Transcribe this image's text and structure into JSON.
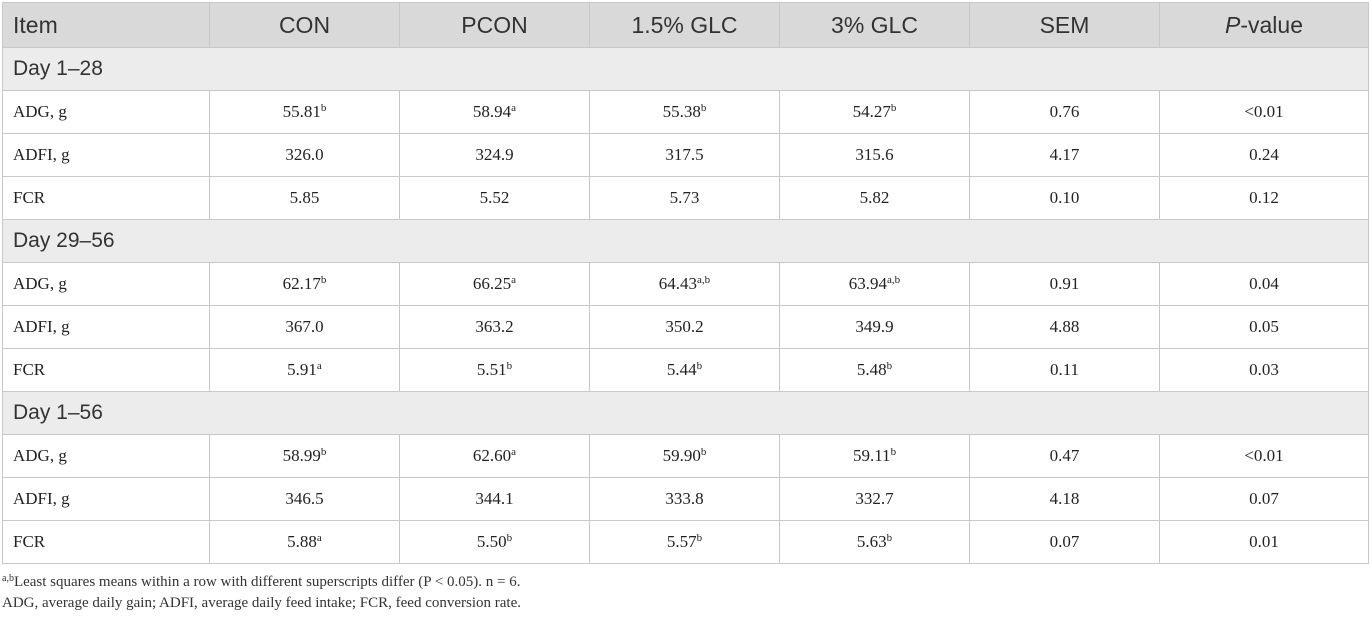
{
  "table": {
    "headers": {
      "item": "Item",
      "con": "CON",
      "pcon": "PCON",
      "glc15": "1.5% GLC",
      "glc3": "3% GLC",
      "sem": "SEM",
      "p_italic": "P",
      "p_rest": "-value"
    },
    "sections": [
      {
        "title": "Day 1–28",
        "rows": [
          {
            "label": "ADG, g",
            "cells": [
              {
                "v": "55.81",
                "s": "b"
              },
              {
                "v": "58.94",
                "s": "a"
              },
              {
                "v": "55.38",
                "s": "b"
              },
              {
                "v": "54.27",
                "s": "b"
              }
            ],
            "sem": "0.76",
            "p": "<0.01"
          },
          {
            "label": "ADFI, g",
            "cells": [
              {
                "v": "326.0",
                "s": ""
              },
              {
                "v": "324.9",
                "s": ""
              },
              {
                "v": "317.5",
                "s": ""
              },
              {
                "v": "315.6",
                "s": ""
              }
            ],
            "sem": "4.17",
            "p": "0.24"
          },
          {
            "label": "FCR",
            "cells": [
              {
                "v": "5.85",
                "s": ""
              },
              {
                "v": "5.52",
                "s": ""
              },
              {
                "v": "5.73",
                "s": ""
              },
              {
                "v": "5.82",
                "s": ""
              }
            ],
            "sem": "0.10",
            "p": "0.12"
          }
        ]
      },
      {
        "title": "Day 29–56",
        "rows": [
          {
            "label": "ADG, g",
            "cells": [
              {
                "v": "62.17",
                "s": "b"
              },
              {
                "v": "66.25",
                "s": "a"
              },
              {
                "v": "64.43",
                "s": "a,b"
              },
              {
                "v": "63.94",
                "s": "a,b"
              }
            ],
            "sem": "0.91",
            "p": "0.04"
          },
          {
            "label": "ADFI, g",
            "cells": [
              {
                "v": "367.0",
                "s": ""
              },
              {
                "v": "363.2",
                "s": ""
              },
              {
                "v": "350.2",
                "s": ""
              },
              {
                "v": "349.9",
                "s": ""
              }
            ],
            "sem": "4.88",
            "p": "0.05"
          },
          {
            "label": "FCR",
            "cells": [
              {
                "v": "5.91",
                "s": "a"
              },
              {
                "v": "5.51",
                "s": "b"
              },
              {
                "v": "5.44",
                "s": "b"
              },
              {
                "v": "5.48",
                "s": "b"
              }
            ],
            "sem": "0.11",
            "p": "0.03"
          }
        ]
      },
      {
        "title": "Day 1–56",
        "rows": [
          {
            "label": "ADG, g",
            "cells": [
              {
                "v": "58.99",
                "s": "b"
              },
              {
                "v": "62.60",
                "s": "a"
              },
              {
                "v": "59.90",
                "s": "b"
              },
              {
                "v": "59.11",
                "s": "b"
              }
            ],
            "sem": "0.47",
            "p": "<0.01"
          },
          {
            "label": "ADFI, g",
            "cells": [
              {
                "v": "346.5",
                "s": ""
              },
              {
                "v": "344.1",
                "s": ""
              },
              {
                "v": "333.8",
                "s": ""
              },
              {
                "v": "332.7",
                "s": ""
              }
            ],
            "sem": "4.18",
            "p": "0.07"
          },
          {
            "label": "FCR",
            "cells": [
              {
                "v": "5.88",
                "s": "a"
              },
              {
                "v": "5.50",
                "s": "b"
              },
              {
                "v": "5.57",
                "s": "b"
              },
              {
                "v": "5.63",
                "s": "b"
              }
            ],
            "sem": "0.07",
            "p": "0.01"
          }
        ]
      }
    ]
  },
  "footnotes": {
    "sup": "a,b",
    "line1": "Least squares means within a row with different superscripts differ (P < 0.05). n = 6.",
    "line2": "ADG, average daily gain; ADFI, average daily feed intake; FCR, feed conversion rate."
  }
}
